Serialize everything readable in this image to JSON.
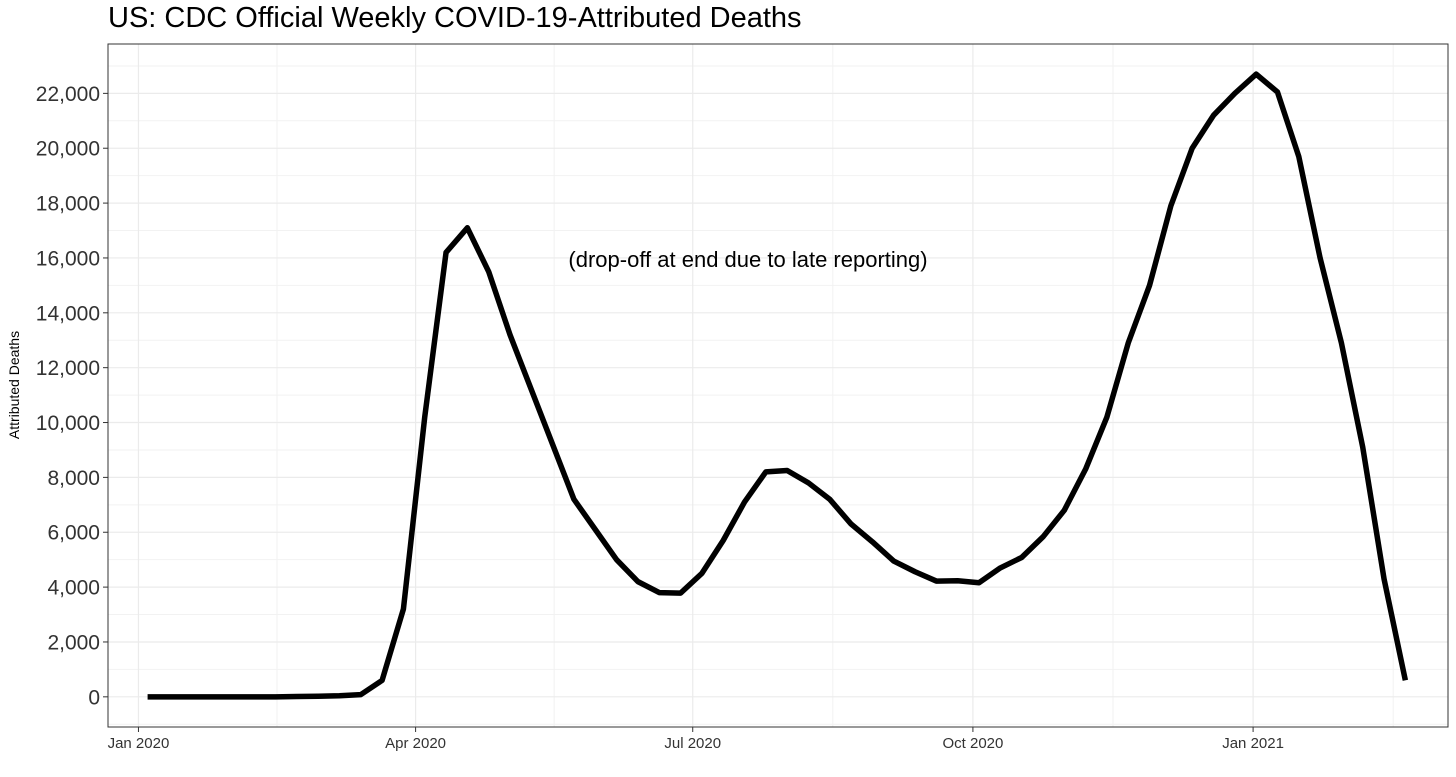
{
  "chart_data": {
    "type": "line",
    "title": "US: CDC Official Weekly COVID-19-Attributed Deaths",
    "xlabel": "",
    "ylabel": "Attributed Deaths",
    "annotation": "(drop-off at end due to late reporting)",
    "x_ticks": [
      {
        "date": "2020-01-01",
        "label": "Jan 2020"
      },
      {
        "date": "2020-04-01",
        "label": "Apr 2020"
      },
      {
        "date": "2020-07-01",
        "label": "Jul 2020"
      },
      {
        "date": "2020-10-01",
        "label": "Oct 2020"
      },
      {
        "date": "2021-01-01",
        "label": "Jan 2021"
      }
    ],
    "y_ticks": [
      {
        "value": 0,
        "label": "0"
      },
      {
        "value": 2000,
        "label": "2,000"
      },
      {
        "value": 4000,
        "label": "4,000"
      },
      {
        "value": 6000,
        "label": "6,000"
      },
      {
        "value": 8000,
        "label": "8,000"
      },
      {
        "value": 10000,
        "label": "10,000"
      },
      {
        "value": 12000,
        "label": "12,000"
      },
      {
        "value": 14000,
        "label": "14,000"
      },
      {
        "value": 16000,
        "label": "16,000"
      },
      {
        "value": 18000,
        "label": "18,000"
      },
      {
        "value": 20000,
        "label": "20,000"
      },
      {
        "value": 22000,
        "label": "22,000"
      }
    ],
    "xlim": [
      "2019-12-22",
      "2021-03-06"
    ],
    "ylim": [
      -1100,
      23800
    ],
    "grid": true,
    "line_color": "#000000",
    "series": [
      {
        "x": [
          "2020-01-04",
          "2020-01-11",
          "2020-01-18",
          "2020-01-25",
          "2020-02-01",
          "2020-02-08",
          "2020-02-15",
          "2020-02-22",
          "2020-02-29",
          "2020-03-07",
          "2020-03-14",
          "2020-03-21",
          "2020-03-28",
          "2020-04-04",
          "2020-04-11",
          "2020-04-18",
          "2020-04-25",
          "2020-05-02",
          "2020-05-09",
          "2020-05-16",
          "2020-05-23",
          "2020-05-30",
          "2020-06-06",
          "2020-06-13",
          "2020-06-20",
          "2020-06-27",
          "2020-07-04",
          "2020-07-11",
          "2020-07-18",
          "2020-07-25",
          "2020-08-01",
          "2020-08-08",
          "2020-08-15",
          "2020-08-22",
          "2020-08-29",
          "2020-09-05",
          "2020-09-12",
          "2020-09-19",
          "2020-09-26",
          "2020-10-03",
          "2020-10-10",
          "2020-10-17",
          "2020-10-24",
          "2020-10-31",
          "2020-11-07",
          "2020-11-14",
          "2020-11-21",
          "2020-11-28",
          "2020-12-05",
          "2020-12-12",
          "2020-12-19",
          "2020-12-26",
          "2021-01-02",
          "2021-01-09",
          "2021-01-16",
          "2021-01-23",
          "2021-01-30",
          "2021-02-06",
          "2021-02-13",
          "2021-02-20"
        ],
        "y": [
          0,
          0,
          0,
          0,
          0,
          0,
          0,
          10,
          20,
          40,
          80,
          600,
          3200,
          10200,
          16200,
          17100,
          15500,
          13200,
          11200,
          9200,
          7200,
          6100,
          5000,
          4200,
          3800,
          3780,
          4500,
          5700,
          7100,
          8200,
          8250,
          7800,
          7200,
          6300,
          5650,
          4950,
          4560,
          4220,
          4230,
          4160,
          4700,
          5080,
          5830,
          6800,
          8300,
          10200,
          12900,
          15000,
          17900,
          20000,
          21200,
          22000,
          22700,
          22050,
          19700,
          16000,
          12900,
          9100,
          4300,
          600
        ]
      }
    ]
  }
}
